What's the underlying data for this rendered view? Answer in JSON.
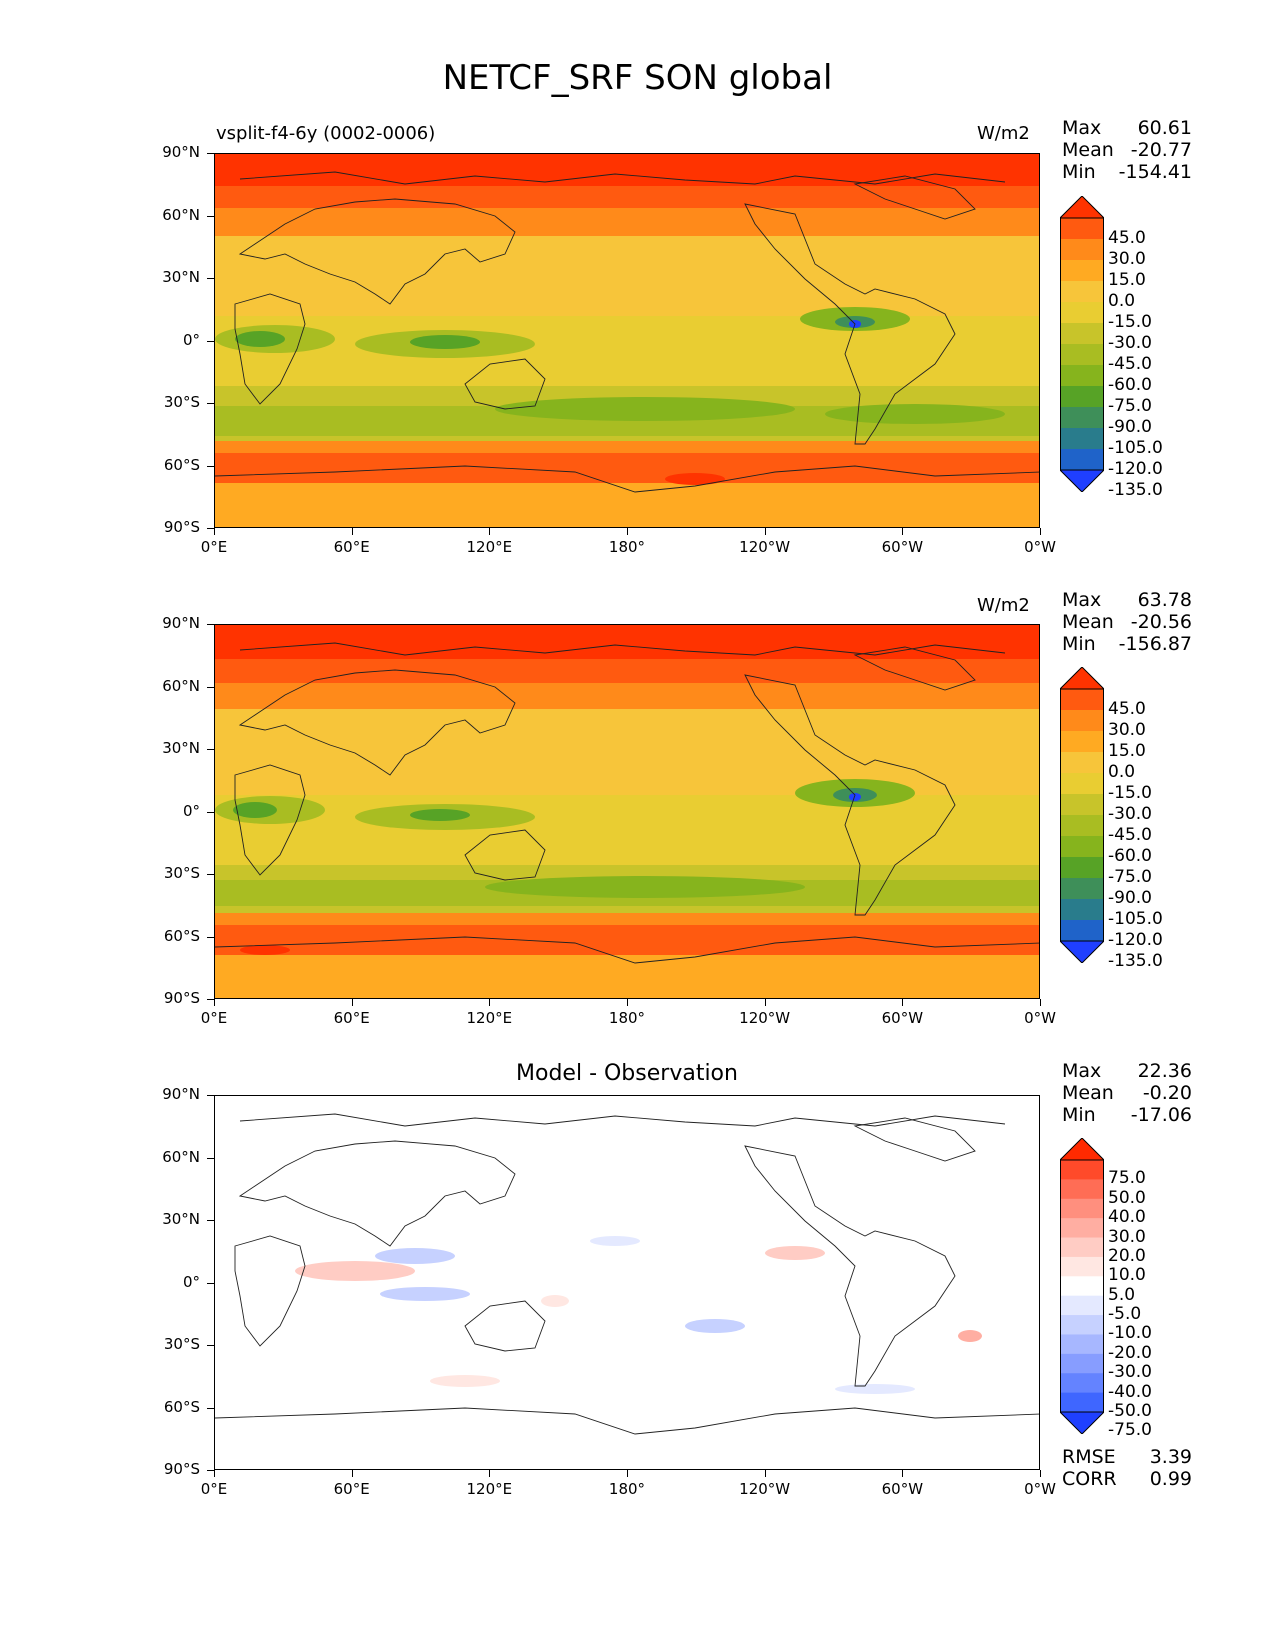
{
  "title": "NETCF_SRF SON global",
  "lat_ticks": [
    "90°N",
    "60°N",
    "30°N",
    "0°",
    "30°S",
    "60°S",
    "90°S"
  ],
  "lon_ticks": [
    "0°E",
    "60°E",
    "120°E",
    "180°",
    "120°W",
    "60°W",
    "0°W"
  ],
  "panels": [
    {
      "left_title": "vsplit-f4-6y (0002-0006)",
      "center_title": "",
      "units": "W/m2",
      "stats": [
        {
          "k": "Max",
          "v": "60.61"
        },
        {
          "k": "Mean",
          "v": "-20.77"
        },
        {
          "k": "Min",
          "v": "-154.41"
        }
      ],
      "colorbar_labels": [
        "45.0",
        "30.0",
        "15.0",
        "0.0",
        "-15.0",
        "-30.0",
        "-45.0",
        "-60.0",
        "-75.0",
        "-90.0",
        "-105.0",
        "-120.0",
        "-135.0"
      ],
      "colors": [
        "#ff3300",
        "#ff5a10",
        "#ff8a1a",
        "#ffaa22",
        "#f7c53a",
        "#e9cd32",
        "#c8c42a",
        "#a9bd22",
        "#86b41d",
        "#57a326",
        "#3e8f59",
        "#297c8c",
        "#1f63c9",
        "#1f3fff"
      ]
    },
    {
      "left_title": "",
      "center_title": "",
      "units": "W/m2",
      "stats": [
        {
          "k": "Max",
          "v": "63.78"
        },
        {
          "k": "Mean",
          "v": "-20.56"
        },
        {
          "k": "Min",
          "v": "-156.87"
        }
      ],
      "colorbar_labels": [
        "45.0",
        "30.0",
        "15.0",
        "0.0",
        "-15.0",
        "-30.0",
        "-45.0",
        "-60.0",
        "-75.0",
        "-90.0",
        "-105.0",
        "-120.0",
        "-135.0"
      ],
      "colors": [
        "#ff3300",
        "#ff5a10",
        "#ff8a1a",
        "#ffaa22",
        "#f7c53a",
        "#e9cd32",
        "#c8c42a",
        "#a9bd22",
        "#86b41d",
        "#57a326",
        "#3e8f59",
        "#297c8c",
        "#1f63c9",
        "#1f3fff"
      ]
    },
    {
      "left_title": "",
      "center_title": "Model - Observation",
      "units": "",
      "stats": [
        {
          "k": "Max",
          "v": "22.36"
        },
        {
          "k": "Mean",
          "v": "-0.20"
        },
        {
          "k": "Min",
          "v": "-17.06"
        }
      ],
      "colorbar_labels": [
        "75.0",
        "50.0",
        "40.0",
        "30.0",
        "20.0",
        "10.0",
        "5.0",
        "-5.0",
        "-10.0",
        "-20.0",
        "-30.0",
        "-40.0",
        "-50.0",
        "-75.0"
      ],
      "colors": [
        "#ff2a00",
        "#ff4a2a",
        "#ff6d55",
        "#ff8f7e",
        "#ffaea2",
        "#ffccc4",
        "#ffe7e2",
        "#ffffff",
        "#e4e9ff",
        "#c6d1ff",
        "#a7b7ff",
        "#879dff",
        "#6483ff",
        "#3f66ff",
        "#1f40ff"
      ],
      "rmse": {
        "k": "RMSE",
        "v": "3.39"
      },
      "corr": {
        "k": "CORR",
        "v": "0.99"
      }
    }
  ]
}
